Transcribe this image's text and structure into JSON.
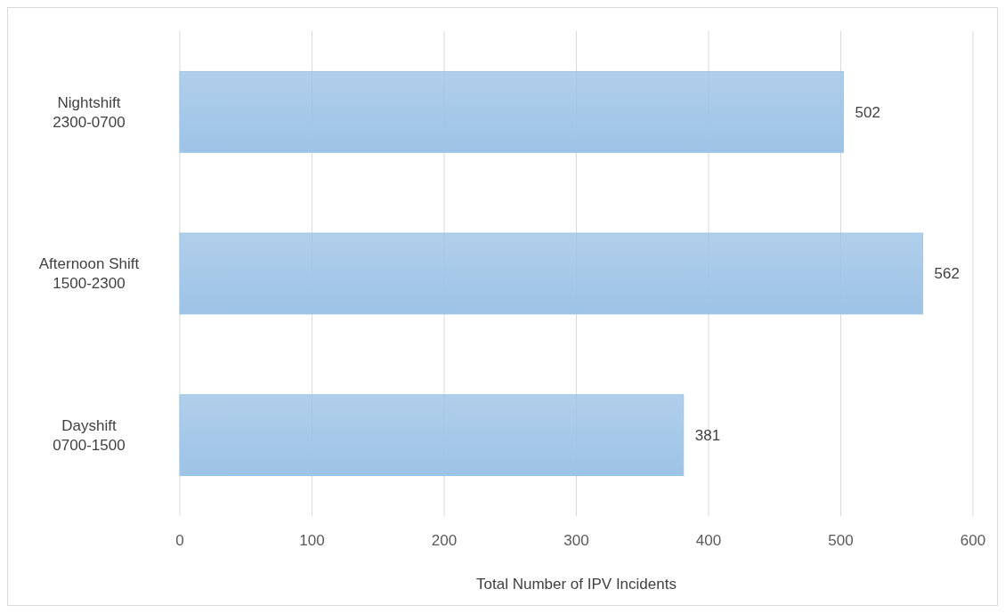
{
  "chart_data": {
    "type": "bar",
    "orientation": "horizontal",
    "categories": [
      "Nightshift\n2300-0700",
      "Afternoon Shift\n1500-2300",
      "Dayshift\n0700-1500"
    ],
    "values": [
      502,
      562,
      381
    ],
    "color": "#9dc3e6",
    "xlabel": "Total Number of IPV Incidents",
    "xlim": [
      0,
      600
    ],
    "xticks": [
      0,
      100,
      200,
      300,
      400,
      500,
      600
    ],
    "grid": "x",
    "data_labels": true
  }
}
